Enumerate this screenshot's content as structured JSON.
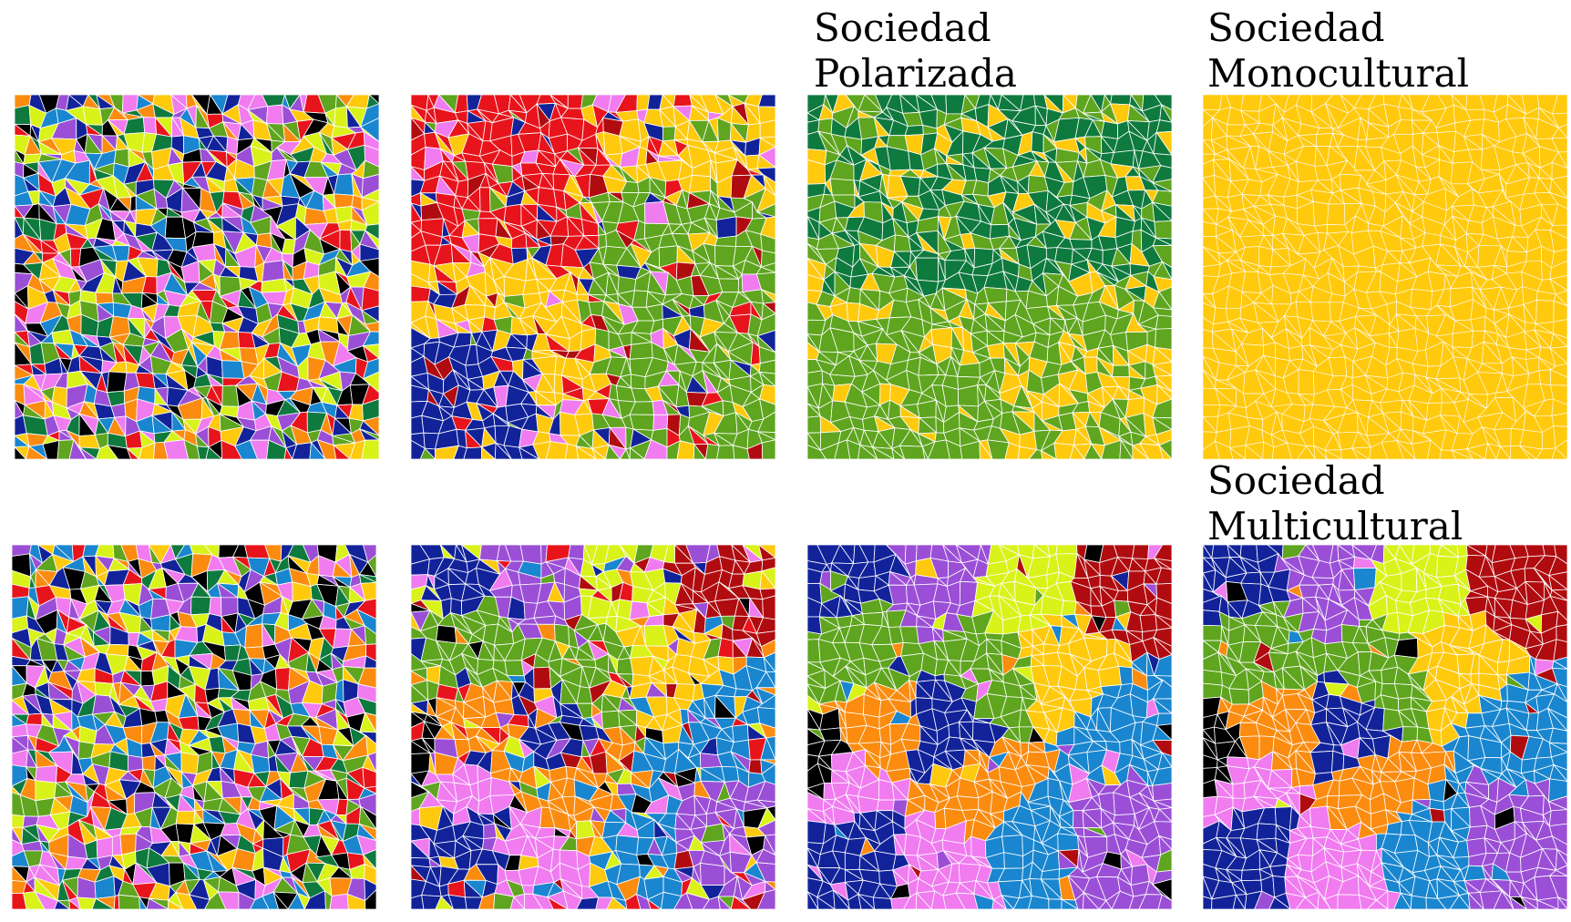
{
  "figure": {
    "captions": {
      "polarized": {
        "line1": "Sociedad",
        "line2": "Polarizada"
      },
      "monocultural": {
        "line1": "Sociedad",
        "line2": "Monocultural"
      },
      "multicultural": {
        "line1": "Sociedad",
        "line2": "Multicultural"
      }
    },
    "palette": {
      "green": "#5fa51f",
      "dark_green": "#0f7a3e",
      "yellow": "#ffc90e",
      "red": "#e8141c",
      "dark_red": "#b00c10",
      "blue": "#12239a",
      "light_blue": "#1a86cf",
      "orange": "#fb8c10",
      "pink": "#f07cf0",
      "purple": "#9b4fd6",
      "lime": "#d9f21a",
      "black": "#000000",
      "cell_border": "#ffffff"
    },
    "panels": [
      {
        "id": "top-1",
        "state": "random-mix",
        "colors": [
          "green",
          "dark_green",
          "yellow",
          "red",
          "blue",
          "light_blue",
          "orange",
          "pink",
          "purple",
          "lime",
          "black"
        ]
      },
      {
        "id": "top-2",
        "state": "clustering",
        "colors": [
          "red",
          "dark_red",
          "green",
          "yellow",
          "blue",
          "pink"
        ]
      },
      {
        "id": "top-3",
        "state": "polarized",
        "colors": [
          "dark_green",
          "green",
          "yellow"
        ]
      },
      {
        "id": "top-4",
        "state": "monocultural",
        "colors": [
          "yellow"
        ]
      },
      {
        "id": "bottom-1",
        "state": "random-mix",
        "colors": [
          "green",
          "dark_green",
          "yellow",
          "red",
          "blue",
          "light_blue",
          "orange",
          "pink",
          "purple",
          "lime",
          "black"
        ]
      },
      {
        "id": "bottom-2",
        "state": "clustering",
        "colors": [
          "blue",
          "purple",
          "green",
          "yellow",
          "orange",
          "pink",
          "light_blue",
          "dark_red",
          "black",
          "red",
          "lime"
        ]
      },
      {
        "id": "bottom-3",
        "state": "regions",
        "colors": [
          "purple",
          "green",
          "yellow",
          "orange",
          "blue",
          "pink",
          "light_blue",
          "dark_red",
          "black",
          "lime"
        ]
      },
      {
        "id": "bottom-4",
        "state": "multicultural",
        "colors": [
          "purple",
          "green",
          "yellow",
          "orange",
          "blue",
          "pink",
          "light_blue",
          "dark_red",
          "black",
          "lime"
        ]
      }
    ]
  }
}
